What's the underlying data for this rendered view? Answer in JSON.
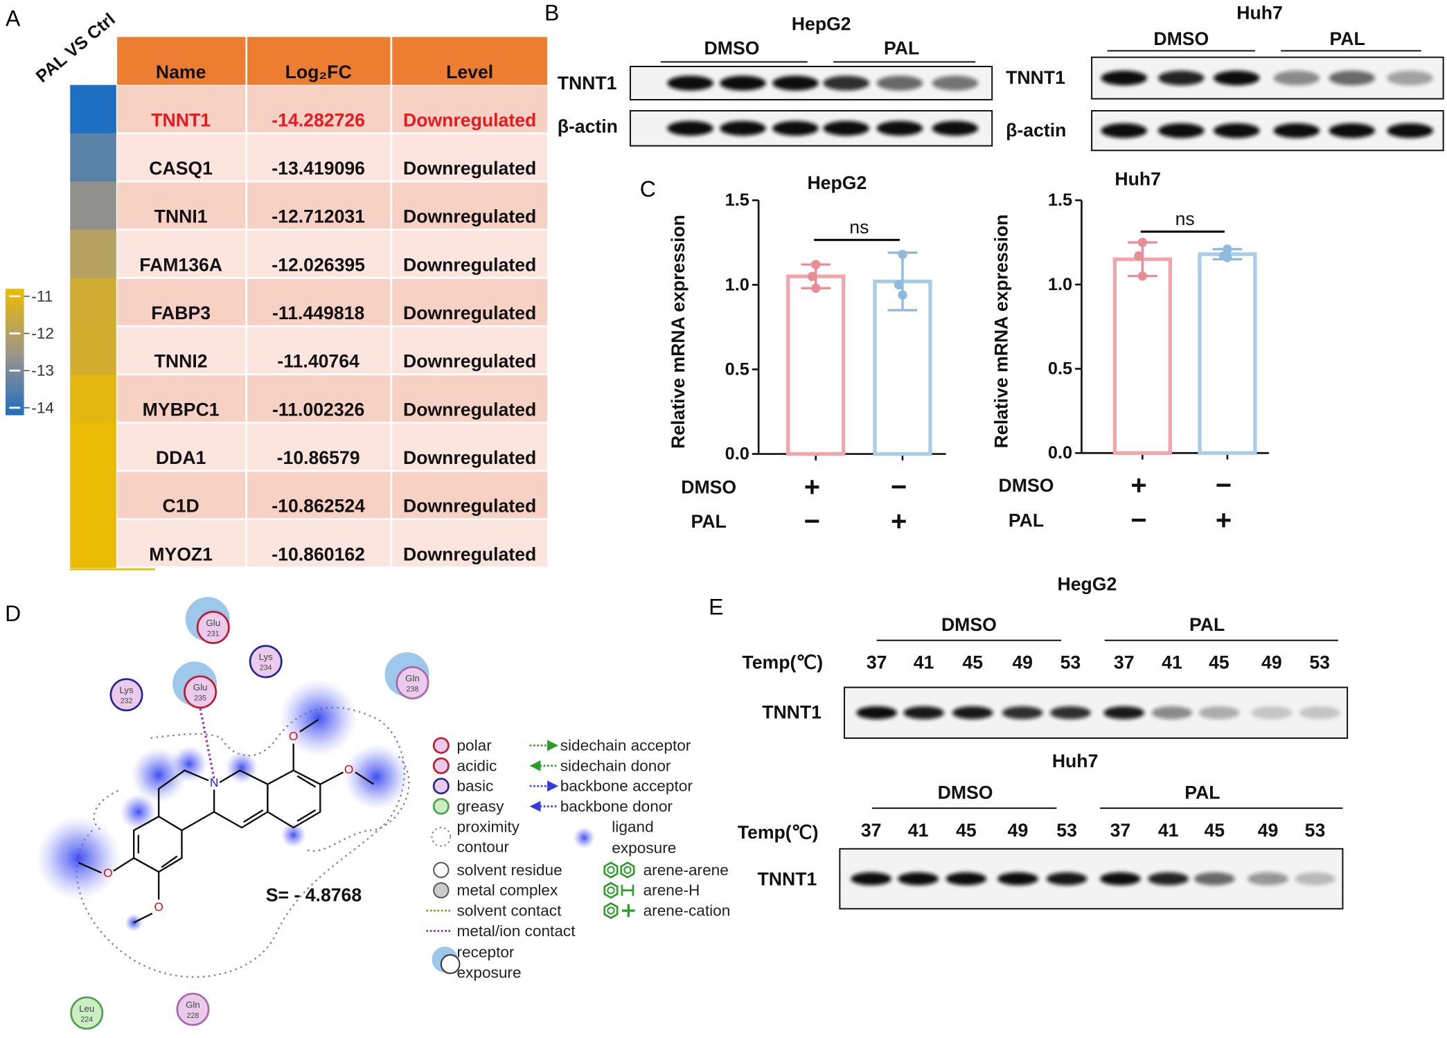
{
  "panels": [
    "A",
    "B",
    "C",
    "D",
    "E"
  ],
  "table": {
    "header": [
      "Name",
      "Log₂FC",
      "Level"
    ],
    "header_color": "#ed7d31",
    "rows": [
      [
        "TNNT1",
        -14.282726,
        "Downregulated"
      ],
      [
        "CASQ1",
        -13.419096,
        "Downregulated"
      ],
      [
        "TNNI1",
        -12.712031,
        "Downregulated"
      ],
      [
        "FAM136A",
        -12.026395,
        "Downregulated"
      ],
      [
        "FABP3",
        -11.449818,
        "Downregulated"
      ],
      [
        "TNNI2",
        -11.40764,
        "Downregulated"
      ],
      [
        "MYBPC1",
        -11.002326,
        "Downregulated"
      ],
      [
        "DDA1",
        -10.86579,
        "Downregulated"
      ],
      [
        "C1D",
        -10.862524,
        "Downregulated"
      ],
      [
        "MYOZ1",
        -10.860162,
        "Downregulated"
      ]
    ],
    "highlight": {
      "row": 0,
      "color": "#e8191f"
    }
  },
  "heatmap": {
    "label": "PAL VS Ctrl",
    "lim": [
      -14.2,
      -10.8
    ],
    "colors": [
      "#1f6fc2",
      "#a09686",
      "#ecbc00"
    ],
    "ticks": [
      -11,
      -12,
      -13,
      -14
    ]
  },
  "blots": [
    {
      "title": "HepG2",
      "groups": [
        "DMSO",
        "PAL"
      ],
      "rows": [
        {
          "label": "TNNT1",
          "intensity": [
            1,
            1,
            1,
            0.85,
            0.6,
            0.55
          ]
        },
        {
          "label": "β-actin",
          "intensity": [
            1,
            1,
            1,
            1,
            1,
            1
          ]
        }
      ]
    },
    {
      "title": "Huh7",
      "groups": [
        "DMSO",
        "PAL"
      ],
      "rows": [
        {
          "label": "TNNT1",
          "intensity": [
            1,
            0.9,
            1,
            0.45,
            0.6,
            0.35
          ]
        },
        {
          "label": "β-actin",
          "intensity": [
            1,
            1,
            1,
            1,
            1,
            1
          ]
        }
      ]
    }
  ],
  "chart_data": [
    {
      "type": "bar",
      "title": "HepG2",
      "y_label": "Relative mRNA expression",
      "categories": [
        null,
        null
      ],
      "values": [
        1.05,
        1.02
      ],
      "errors": [
        0.07,
        0.17
      ],
      "points": [
        [
          1.12,
          1.05,
          0.98
        ],
        [
          1.18,
          1.0,
          0.94
        ]
      ],
      "colors": [
        "#f2a5ad",
        "#a9cde6"
      ],
      "ylim": [
        0,
        1.5
      ],
      "yticks": [
        {
          "value": 0,
          "label": "0.0"
        },
        {
          "value": 0.5,
          "label": "0.5"
        },
        {
          "value": 1,
          "label": "1.0"
        },
        {
          "value": 1.5,
          "label": "1.5"
        }
      ],
      "annotation": "ns",
      "conditions": [
        {
          "name": "DMSO",
          "signs": [
            "+",
            "−"
          ]
        },
        {
          "name": "PAL",
          "signs": [
            "−",
            "+"
          ]
        }
      ]
    },
    {
      "type": "bar",
      "title": "Huh7",
      "y_label": "Relative mRNA expression",
      "categories": [
        null,
        null
      ],
      "values": [
        1.15,
        1.18
      ],
      "errors": [
        0.1,
        0.03
      ],
      "points": [
        [
          1.25,
          1.17,
          1.05
        ],
        [
          1.21,
          1.17,
          1.16
        ]
      ],
      "colors": [
        "#f2a5ad",
        "#a9cde6"
      ],
      "ylim": [
        0,
        1.5
      ],
      "yticks": [
        {
          "value": 0,
          "label": "0.0"
        },
        {
          "value": 0.5,
          "label": "0.5"
        },
        {
          "value": 1,
          "label": "1.0"
        },
        {
          "value": 1.5,
          "label": "1.5"
        }
      ],
      "annotation": "ns",
      "conditions": [
        {
          "name": "DMSO",
          "signs": [
            "+",
            "−"
          ]
        },
        {
          "name": "PAL",
          "signs": [
            "−",
            "+"
          ]
        }
      ]
    }
  ],
  "docking": {
    "residues": [
      {
        "name": "Glu",
        "number": 231,
        "fill": "#ebcbeb",
        "stroke": "#c0182c",
        "exposure": true
      },
      {
        "name": "Lys",
        "number": 234,
        "fill": "#ebcbeb",
        "stroke": "#23239a",
        "exposure": false
      },
      {
        "name": "Lys",
        "number": 232,
        "fill": "#ebcbeb",
        "stroke": "#23239a",
        "exposure": false
      },
      {
        "name": "Glu",
        "number": 235,
        "fill": "#ebcbeb",
        "stroke": "#c0182c",
        "exposure": true
      },
      {
        "name": "Gln",
        "number": 238,
        "fill": "#ebcbeb",
        "stroke": "#a868a8",
        "exposure": true
      },
      {
        "name": "Leu",
        "number": 224,
        "fill": "#cbeec3",
        "stroke": "#4f9f4f",
        "exposure": false
      },
      {
        "name": "Gln",
        "number": 228,
        "fill": "#ebcbeb",
        "stroke": "#a868a8",
        "exposure": false
      }
    ],
    "atoms": [
      "N",
      "O",
      "O",
      "O",
      "O"
    ],
    "score": "S= - 4.8768",
    "legend": [
      [
        [
          "polar"
        ],
        [
          "acidic"
        ],
        [
          "basic"
        ],
        [
          "greasy"
        ],
        [
          "proximity",
          "contour"
        ],
        [
          "solvent residue"
        ],
        [
          "metal complex"
        ],
        [
          "solvent contact"
        ],
        [
          "metal/ion contact"
        ],
        [
          "receptor",
          "exposure"
        ]
      ],
      [
        [
          "sidechain acceptor"
        ],
        [
          "sidechain donor"
        ],
        [
          "backbone acceptor"
        ],
        [
          "backbone donor"
        ],
        [
          "ligand",
          "exposure"
        ],
        [
          "arene-arene"
        ],
        [
          "arene-H"
        ],
        [
          "arene-cation"
        ]
      ]
    ]
  },
  "cetsa": [
    {
      "title": "HegG2",
      "groups": [
        "DMSO",
        "PAL"
      ],
      "temp_label": "Temp(℃)",
      "temps": [
        37,
        41,
        45,
        49,
        53,
        37,
        41,
        45,
        49,
        53
      ],
      "row_label": "TNNT1",
      "intensity": [
        1,
        0.95,
        0.95,
        0.85,
        0.85,
        0.95,
        0.45,
        0.3,
        0.2,
        0.2
      ]
    },
    {
      "title": "Huh7",
      "groups": [
        "DMSO",
        "PAL"
      ],
      "temp_label": "Temp(℃)",
      "temps": [
        37,
        41,
        45,
        49,
        53,
        37,
        41,
        45,
        49,
        53
      ],
      "row_label": "TNNT1",
      "intensity": [
        1,
        1,
        1,
        1,
        0.95,
        1,
        0.9,
        0.6,
        0.4,
        0.25
      ]
    }
  ]
}
